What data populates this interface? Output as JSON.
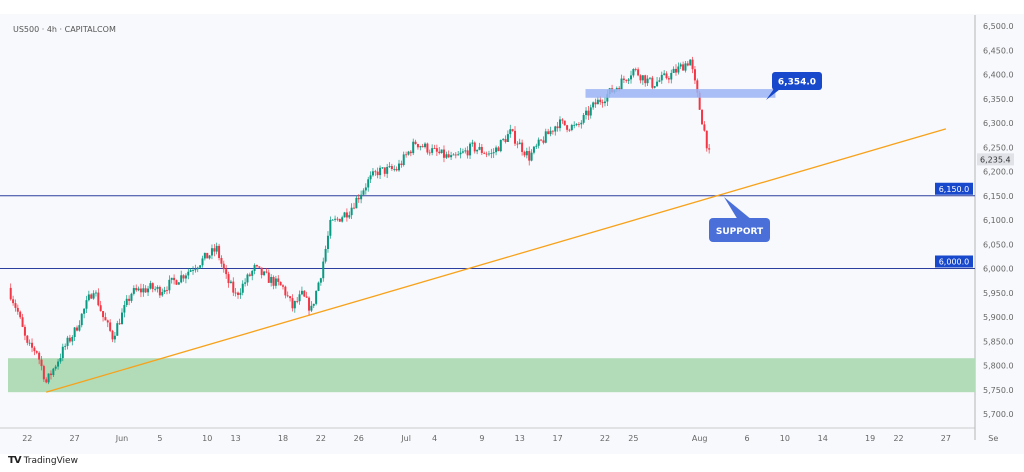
{
  "header": {
    "title": "US500 · 4h · CAPITALCOM"
  },
  "footer": {
    "brand": "TradingView",
    "brand_logo": "TV"
  },
  "chart_data": {
    "type": "candlestick",
    "title": "US500 · 4h · CAPITALCOM",
    "ylim": [
      5675,
      6525
    ],
    "y_ticks": [
      "6,500.0",
      "6,450.0",
      "6,400.0",
      "6,350.0",
      "6,300.0",
      "6,250.0",
      "6,200.0",
      "6,150.0",
      "6,100.0",
      "6,050.0",
      "6,000.0",
      "5,950.0",
      "5,900.0",
      "5,850.0",
      "5,800.0",
      "5,750.0",
      "5,700.0"
    ],
    "y_tick_values": [
      6500,
      6450,
      6400,
      6350,
      6300,
      6250,
      6200,
      6150,
      6100,
      6050,
      6000,
      5950,
      5900,
      5850,
      5800,
      5750,
      5700
    ],
    "x_ticks": [
      {
        "label": "22",
        "date": "05-22"
      },
      {
        "label": "27",
        "date": "05-27"
      },
      {
        "label": "Jun",
        "date": "06-01"
      },
      {
        "label": "5",
        "date": "06-05"
      },
      {
        "label": "10",
        "date": "06-10"
      },
      {
        "label": "13",
        "date": "06-13"
      },
      {
        "label": "18",
        "date": "06-18"
      },
      {
        "label": "22",
        "date": "06-22"
      },
      {
        "label": "26",
        "date": "06-26"
      },
      {
        "label": "Jul",
        "date": "07-01"
      },
      {
        "label": "4",
        "date": "07-04"
      },
      {
        "label": "9",
        "date": "07-09"
      },
      {
        "label": "13",
        "date": "07-13"
      },
      {
        "label": "17",
        "date": "07-17"
      },
      {
        "label": "22",
        "date": "07-22"
      },
      {
        "label": "25",
        "date": "07-25"
      },
      {
        "label": "Aug",
        "date": "08-01"
      },
      {
        "label": "6",
        "date": "08-06"
      },
      {
        "label": "10",
        "date": "08-10"
      },
      {
        "label": "14",
        "date": "08-14"
      },
      {
        "label": "19",
        "date": "08-19"
      },
      {
        "label": "22",
        "date": "08-22"
      },
      {
        "label": "27",
        "date": "08-27"
      },
      {
        "label": "Se",
        "date": "09-01"
      }
    ],
    "close_path": [
      [
        "05-20",
        5960
      ],
      [
        "05-21",
        5910
      ],
      [
        "05-22",
        5840
      ],
      [
        "05-23",
        5830
      ],
      [
        "05-24",
        5765
      ],
      [
        "05-26",
        5840
      ],
      [
        "05-27",
        5870
      ],
      [
        "05-29",
        5960
      ],
      [
        "05-30",
        5900
      ],
      [
        "05-31",
        5860
      ],
      [
        "06-02",
        5950
      ],
      [
        "06-04",
        5960
      ],
      [
        "06-05",
        5955
      ],
      [
        "06-07",
        5980
      ],
      [
        "06-09",
        6010
      ],
      [
        "06-11",
        6040
      ],
      [
        "06-12",
        5980
      ],
      [
        "06-13",
        5945
      ],
      [
        "06-15",
        6000
      ],
      [
        "06-16",
        5985
      ],
      [
        "06-18",
        5960
      ],
      [
        "06-19",
        5920
      ],
      [
        "06-20",
        5945
      ],
      [
        "06-21",
        5915
      ],
      [
        "06-22",
        5990
      ],
      [
        "06-23",
        6090
      ],
      [
        "06-25",
        6120
      ],
      [
        "06-27",
        6180
      ],
      [
        "06-28",
        6200
      ],
      [
        "06-30",
        6205
      ],
      [
        "07-02",
        6260
      ],
      [
        "07-04",
        6240
      ],
      [
        "07-06",
        6225
      ],
      [
        "07-08",
        6250
      ],
      [
        "07-10",
        6235
      ],
      [
        "07-12",
        6280
      ],
      [
        "07-14",
        6230
      ],
      [
        "07-15",
        6255
      ],
      [
        "07-17",
        6300
      ],
      [
        "07-19",
        6290
      ],
      [
        "07-21",
        6340
      ],
      [
        "07-23",
        6370
      ],
      [
        "07-25",
        6410
      ],
      [
        "07-27",
        6380
      ],
      [
        "07-29",
        6400
      ],
      [
        "07-31",
        6430
      ],
      [
        "08-01",
        6330
      ],
      [
        "08-02",
        6235
      ]
    ],
    "last_price": {
      "value": 6235.4,
      "label": "6,235.4"
    },
    "horizontal_lines": [
      {
        "value": 6150,
        "label": "6,150.0"
      },
      {
        "value": 6000,
        "label": "6,000.0"
      }
    ],
    "resistance_zone": {
      "from_date": "07-21",
      "to_date": "08-09",
      "low": 6352,
      "high": 6370,
      "label": "6,354.0"
    },
    "support_label": "SUPPORT",
    "demand_zone": {
      "low": 5745,
      "high": 5815
    },
    "trendline": {
      "start": [
        "05-24",
        5745
      ],
      "end": [
        "08-27",
        6288
      ]
    },
    "colors": {
      "up": "#089981",
      "down": "#f23645",
      "line": "#2a3f9e",
      "trend": "#f7a21b",
      "zone_green": "#b2dbb8",
      "zone_blue": "#9bb4f5",
      "label_dark": "#1848cc",
      "label_support": "#4a6fd8"
    }
  }
}
